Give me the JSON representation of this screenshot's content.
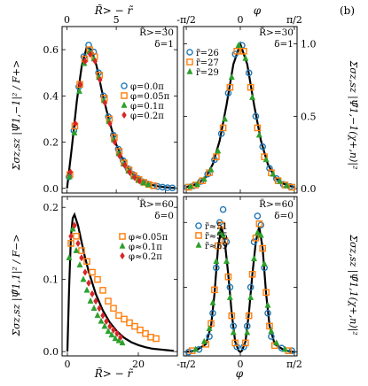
{
  "figure": {
    "panel_label": "(b)",
    "top_left_xlabel": "R̃> − r̃",
    "top_right_xlabel": "φ",
    "bottom_left_xlabel": "R̃> − r̃",
    "bottom_right_xlabel": "φ",
    "top_left_ylabel": "Σσz,sz |Ψ̃1,−1|² / F+>",
    "bottom_left_ylabel": "Σσz,sz |Ψ̃1,1|² / F−>",
    "top_right_ylabel": "Σσz,sz |Ψ̃1,−1(χ+,n)|²",
    "bottom_right_ylabel": "Σσz,sz |Ψ̃1,1(χ+,n)|²"
  },
  "colors": {
    "blue": "#1f77b4",
    "orange": "#ff7f0e",
    "green": "#2ca02c",
    "red": "#d62728",
    "theory": "#000000"
  },
  "chart_data": [
    {
      "id": "top-left",
      "type": "line",
      "annotation": [
        "R̃>=30",
        "δ=1"
      ],
      "x_ticks": [
        "0",
        "5"
      ],
      "y_ticks": [
        "0.0",
        "0.2",
        "0.4",
        "0.6"
      ],
      "xlim": [
        -0.5,
        11.2
      ],
      "ylim": [
        -0.02,
        0.7
      ],
      "legend": [
        "φ=0.0π",
        "φ=0.05π",
        "φ=0.1π",
        "φ=0.2π"
      ],
      "theory_x": [
        0,
        0.5,
        1,
        1.5,
        2,
        2.5,
        3,
        3.5,
        4,
        4.5,
        5,
        5.5,
        6,
        6.5,
        7,
        7.5,
        8,
        8.5,
        9,
        9.5,
        10,
        10.5,
        11
      ],
      "theory_y": [
        0,
        0.18,
        0.38,
        0.53,
        0.61,
        0.6,
        0.53,
        0.43,
        0.34,
        0.26,
        0.19,
        0.14,
        0.1,
        0.07,
        0.05,
        0.035,
        0.024,
        0.016,
        0.011,
        0.007,
        0.005,
        0.003,
        0.002
      ],
      "series": [
        {
          "label": "φ=0.0π",
          "marker": "circle",
          "color": "#1f77b4",
          "x": [
            0.2,
            0.7,
            1.2,
            1.7,
            2.2,
            2.7,
            3.2,
            3.7,
            4.2,
            4.7,
            5.2,
            5.7,
            6.2,
            6.7,
            7.2,
            7.7,
            8.2,
            8.7,
            9.2,
            9.7,
            10.2,
            10.7
          ],
          "y": [
            0.05,
            0.25,
            0.44,
            0.57,
            0.62,
            0.59,
            0.5,
            0.4,
            0.31,
            0.23,
            0.17,
            0.12,
            0.085,
            0.06,
            0.042,
            0.028,
            0.019,
            0.012,
            0.008,
            0.005,
            0.003,
            0.002
          ]
        },
        {
          "label": "φ=0.05π",
          "marker": "square",
          "color": "#ff7f0e",
          "x": [
            0.3,
            0.8,
            1.3,
            1.8,
            2.3,
            2.8,
            3.3,
            3.8,
            4.3,
            4.8,
            5.3,
            5.8,
            6.3,
            6.8,
            7.3,
            7.8,
            8.3,
            8.8
          ],
          "y": [
            0.06,
            0.27,
            0.45,
            0.56,
            0.6,
            0.57,
            0.49,
            0.39,
            0.3,
            0.22,
            0.16,
            0.11,
            0.08,
            0.055,
            0.038,
            0.026,
            0.017,
            0.011
          ]
        },
        {
          "label": "φ=0.1π",
          "marker": "triangle",
          "color": "#2ca02c",
          "x": [
            0.25,
            0.75,
            1.25,
            1.75,
            2.25,
            2.75,
            3.25,
            3.75,
            4.25,
            4.75,
            5.25,
            5.75,
            6.25,
            6.75,
            7.25,
            7.75,
            8.25
          ],
          "y": [
            0.05,
            0.24,
            0.42,
            0.54,
            0.59,
            0.56,
            0.48,
            0.38,
            0.29,
            0.21,
            0.15,
            0.105,
            0.075,
            0.05,
            0.035,
            0.024,
            0.016
          ]
        },
        {
          "label": "φ=0.2π",
          "marker": "diamond",
          "color": "#d62728",
          "x": [
            0.35,
            0.85,
            1.35,
            1.85,
            2.35,
            2.85,
            3.35,
            3.85,
            4.35,
            4.85,
            5.35,
            5.85,
            6.35,
            6.85,
            7.35
          ],
          "y": [
            0.07,
            0.28,
            0.45,
            0.55,
            0.58,
            0.55,
            0.47,
            0.37,
            0.28,
            0.2,
            0.14,
            0.1,
            0.07,
            0.048,
            0.032
          ]
        }
      ]
    },
    {
      "id": "top-right",
      "type": "line",
      "annotation": [
        "R̃>=30",
        "δ=1"
      ],
      "x_ticks": [
        "-π/2",
        "0",
        "π/2"
      ],
      "y_ticks": [
        "0.0",
        "0.5",
        "1.0"
      ],
      "xlim": [
        -1.65,
        1.65
      ],
      "ylim": [
        -0.03,
        1.12
      ],
      "legend": [
        "r̃=26",
        "r̃=27",
        "r̃=29"
      ],
      "theory_x": [
        -1.6,
        -1.4,
        -1.2,
        -1.0,
        -0.8,
        -0.6,
        -0.4,
        -0.2,
        0,
        0.2,
        0.4,
        0.6,
        0.8,
        1.0,
        1.2,
        1.4,
        1.6
      ],
      "theory_y": [
        0.01,
        0.02,
        0.04,
        0.08,
        0.17,
        0.33,
        0.58,
        0.86,
        1.0,
        0.86,
        0.58,
        0.33,
        0.17,
        0.08,
        0.04,
        0.02,
        0.01
      ],
      "series": [
        {
          "label": "r̃=26",
          "marker": "circle",
          "color": "#1f77b4",
          "x": [
            -1.55,
            -1.35,
            -1.15,
            -0.95,
            -0.75,
            -0.55,
            -0.35,
            -0.15,
            0.05,
            0.25,
            0.45,
            0.65,
            0.85,
            1.05,
            1.25,
            1.45
          ],
          "y": [
            0.01,
            0.02,
            0.05,
            0.1,
            0.2,
            0.38,
            0.66,
            0.93,
            0.99,
            0.8,
            0.5,
            0.29,
            0.14,
            0.07,
            0.03,
            0.015
          ]
        },
        {
          "label": "r̃=27",
          "marker": "square",
          "color": "#ff7f0e",
          "x": [
            -1.5,
            -1.3,
            -1.1,
            -0.9,
            -0.7,
            -0.5,
            -0.3,
            -0.1,
            0.1,
            0.3,
            0.5,
            0.7,
            0.9,
            1.1,
            1.3,
            1.5
          ],
          "y": [
            0.01,
            0.025,
            0.055,
            0.11,
            0.22,
            0.42,
            0.7,
            0.95,
            0.95,
            0.7,
            0.42,
            0.22,
            0.11,
            0.055,
            0.025,
            0.01
          ]
        },
        {
          "label": "r̃=29",
          "marker": "triangle",
          "color": "#2ca02c",
          "x": [
            -1.45,
            -1.25,
            -1.05,
            -0.85,
            -0.65,
            -0.45,
            -0.25,
            -0.05,
            0.15,
            0.35,
            0.55,
            0.75,
            0.95,
            1.15,
            1.35
          ],
          "y": [
            0.015,
            0.03,
            0.065,
            0.13,
            0.26,
            0.48,
            0.77,
            0.99,
            0.9,
            0.63,
            0.37,
            0.2,
            0.1,
            0.05,
            0.02
          ]
        }
      ]
    },
    {
      "id": "bottom-left",
      "type": "line",
      "annotation": [
        "R̃>=60",
        "δ=0"
      ],
      "x_ticks": [
        "0",
        "20"
      ],
      "y_ticks": [
        "0.0",
        "0.1",
        "0.2"
      ],
      "xlim": [
        -1.5,
        31
      ],
      "ylim": [
        -0.006,
        0.215
      ],
      "legend": [
        "φ≈0.05π",
        "φ≈0.1π",
        "φ≈0.2π"
      ],
      "theory_x": [
        0,
        0.5,
        1,
        1.5,
        2,
        3,
        4,
        5,
        6,
        8,
        10,
        12,
        14,
        16,
        18,
        20,
        22,
        24,
        26,
        28,
        30
      ],
      "theory_y": [
        0,
        0.09,
        0.16,
        0.185,
        0.19,
        0.175,
        0.152,
        0.13,
        0.111,
        0.08,
        0.057,
        0.04,
        0.028,
        0.019,
        0.013,
        0.009,
        0.006,
        0.004,
        0.003,
        0.002,
        0.001
      ],
      "series": [
        {
          "label": "φ≈0.05π",
          "marker": "square",
          "color": "#ff7f0e",
          "x": [
            1,
            2.5,
            4,
            5.5,
            7,
            8.5,
            10,
            11.5,
            13,
            14.5,
            16,
            17.5,
            19,
            20.5,
            22,
            23.5,
            25
          ],
          "y": [
            0.15,
            0.16,
            0.14,
            0.125,
            0.11,
            0.1,
            0.085,
            0.07,
            0.06,
            0.05,
            0.045,
            0.04,
            0.035,
            0.03,
            0.025,
            0.02,
            0.018
          ]
        },
        {
          "label": "φ≈0.1π",
          "marker": "triangle",
          "color": "#2ca02c",
          "x": [
            0.5,
            1.5,
            2.5,
            3.5,
            4.5,
            5.5,
            6.5,
            7.5,
            8.5,
            9.5,
            10.5,
            11.5,
            12.5,
            13.5,
            14.5,
            15.5
          ],
          "y": [
            0.13,
            0.17,
            0.14,
            0.12,
            0.1,
            0.085,
            0.07,
            0.06,
            0.05,
            0.042,
            0.035,
            0.028,
            0.023,
            0.018,
            0.015,
            0.012
          ]
        },
        {
          "label": "φ≈0.2π",
          "marker": "diamond",
          "color": "#d62728",
          "x": [
            1,
            2,
            3,
            4,
            5,
            6,
            7,
            8,
            9,
            10,
            11,
            12,
            13,
            14,
            15
          ],
          "y": [
            0.16,
            0.175,
            0.15,
            0.13,
            0.11,
            0.095,
            0.08,
            0.07,
            0.06,
            0.05,
            0.042,
            0.035,
            0.03,
            0.025,
            0.02
          ]
        }
      ]
    },
    {
      "id": "bottom-right",
      "type": "line",
      "annotation": [
        "R̃>=60",
        "δ=0"
      ],
      "x_ticks": [
        "-π/2",
        "0",
        "π/2"
      ],
      "y_ticks": [],
      "xlim": [
        -1.65,
        1.65
      ],
      "ylim": [
        -0.03,
        1.2
      ],
      "legend": [
        "r̃≈51",
        "r̃≈55",
        "r̃≈59"
      ],
      "theory_x": [
        -1.6,
        -1.3,
        -1.0,
        -0.85,
        -0.75,
        -0.65,
        -0.55,
        -0.45,
        -0.35,
        -0.25,
        -0.15,
        -0.05,
        0,
        0.05,
        0.15,
        0.25,
        0.35,
        0.45,
        0.55,
        0.65,
        0.75,
        0.85,
        1.0,
        1.3,
        1.6
      ],
      "theory_y": [
        0.0,
        0.01,
        0.06,
        0.2,
        0.45,
        0.8,
        0.97,
        0.85,
        0.6,
        0.3,
        0.08,
        0.01,
        0.0,
        0.01,
        0.08,
        0.3,
        0.6,
        0.85,
        0.97,
        0.8,
        0.45,
        0.2,
        0.06,
        0.01,
        0.0
      ],
      "series": [
        {
          "label": "r̃≈51",
          "marker": "circle",
          "color": "#1f77b4",
          "x": [
            -1.5,
            -1.2,
            -0.9,
            -0.8,
            -0.7,
            -0.6,
            -0.5,
            -0.4,
            -0.3,
            -0.2,
            -0.1,
            0.1,
            0.2,
            0.3,
            0.4,
            0.5,
            0.6,
            0.7,
            0.8,
            0.9,
            1.2,
            1.5
          ],
          "y": [
            0.0,
            0.02,
            0.12,
            0.3,
            0.65,
            1.0,
            1.1,
            0.85,
            0.5,
            0.2,
            0.04,
            0.04,
            0.2,
            0.5,
            0.85,
            1.05,
            0.98,
            0.65,
            0.3,
            0.12,
            0.03,
            0.01
          ]
        },
        {
          "label": "r̃≈55",
          "marker": "square",
          "color": "#ff7f0e",
          "x": [
            -1.4,
            -1.0,
            -0.85,
            -0.75,
            -0.65,
            -0.55,
            -0.45,
            -0.35,
            -0.25,
            -0.15,
            0.15,
            0.25,
            0.35,
            0.45,
            0.55,
            0.65,
            0.75,
            0.85,
            1.0,
            1.4
          ],
          "y": [
            0.01,
            0.06,
            0.22,
            0.48,
            0.82,
            0.98,
            0.86,
            0.58,
            0.28,
            0.07,
            0.07,
            0.28,
            0.6,
            0.88,
            0.99,
            0.8,
            0.46,
            0.2,
            0.05,
            0.01
          ]
        },
        {
          "label": "r̃≈59",
          "marker": "triangle",
          "color": "#2ca02c",
          "x": [
            -1.3,
            -1.05,
            -0.9,
            -0.8,
            -0.7,
            -0.6,
            -0.5,
            -0.4,
            -0.3,
            -0.2,
            0.2,
            0.3,
            0.4,
            0.5,
            0.6,
            0.7,
            0.8,
            0.9,
            1.05,
            1.3
          ],
          "y": [
            0.02,
            0.08,
            0.18,
            0.38,
            0.7,
            0.92,
            0.9,
            0.7,
            0.42,
            0.15,
            0.15,
            0.42,
            0.72,
            0.92,
            0.9,
            0.68,
            0.36,
            0.16,
            0.07,
            0.02
          ]
        }
      ]
    }
  ]
}
